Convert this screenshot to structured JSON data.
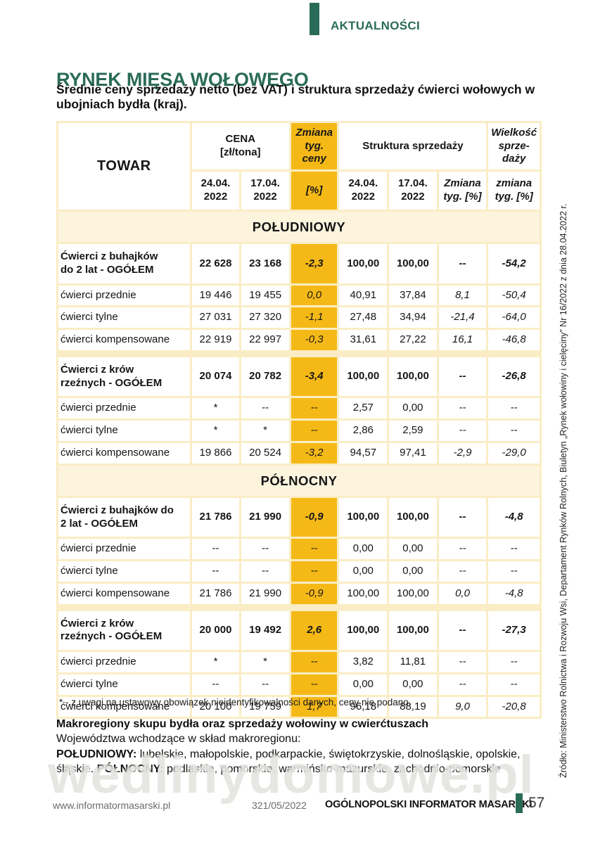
{
  "header": {
    "section_label": "AKTUALNOŚCI"
  },
  "article": {
    "title": "RYNEK MIĘSA WOŁOWEGO",
    "subtitle": "Średnie ceny sprzedaży netto (bez VAT) i struktura sprzedaży ćwierci wołowych w ubojniach bydła (kraj)."
  },
  "table": {
    "header_row1": [
      {
        "label": "TOWAR",
        "rowspan": 2,
        "colspan": 1,
        "class": "th-towar"
      },
      {
        "label": "CENA\n[zł/tona]",
        "rowspan": 1,
        "colspan": 2,
        "class": ""
      },
      {
        "label": "Zmiana\ntyg.\nceny",
        "rowspan": 1,
        "colspan": 1,
        "class": "yellow ital"
      },
      {
        "label": "Struktura sprzedaży",
        "rowspan": 1,
        "colspan": 3,
        "class": ""
      },
      {
        "label": "Wielkość\nsprze-\ndaży",
        "rowspan": 1,
        "colspan": 1,
        "class": "ital"
      }
    ],
    "header_row2": [
      {
        "label": "24.04.\n2022",
        "class": ""
      },
      {
        "label": "17.04.\n2022",
        "class": ""
      },
      {
        "label": "[%]",
        "class": "yellow ital"
      },
      {
        "label": "24.04.\n2022",
        "class": ""
      },
      {
        "label": "17.04.\n2022",
        "class": ""
      },
      {
        "label": "Zmiana\ntyg. [%]",
        "class": "ital"
      },
      {
        "label": "zmiana\ntyg. [%]",
        "class": "ital"
      }
    ],
    "sections": [
      {
        "name": "POŁUDNIOWY",
        "rows": [
          {
            "type": "group",
            "cells": [
              "Ćwierci z buhajków\ndo 2 lat - OGÓŁEM",
              "22 628",
              "23 168",
              "-2,3",
              "100,00",
              "100,00",
              "--",
              "-54,2"
            ]
          },
          {
            "type": "normal",
            "cells": [
              "ćwierci przednie",
              "19 446",
              "19 455",
              "0,0",
              "40,91",
              "37,84",
              "8,1",
              "-50,4"
            ]
          },
          {
            "type": "normal",
            "cells": [
              "ćwierci tylne",
              "27 031",
              "27 320",
              "-1,1",
              "27,48",
              "34,94",
              "-21,4",
              "-64,0"
            ]
          },
          {
            "type": "normal",
            "cells": [
              "ćwierci kompensowane",
              "22 919",
              "22 997",
              "-0,3",
              "31,61",
              "27,22",
              "16,1",
              "-46,8"
            ]
          },
          {
            "type": "group",
            "cells": [
              "Ćwierci z krów\nrzeźnych - OGÓŁEM",
              "20 074",
              "20 782",
              "-3,4",
              "100,00",
              "100,00",
              "--",
              "-26,8"
            ]
          },
          {
            "type": "normal",
            "cells": [
              "ćwierci przednie",
              "*",
              "--",
              "--",
              "2,57",
              "0,00",
              "--",
              "--"
            ]
          },
          {
            "type": "normal",
            "cells": [
              "ćwierci tylne",
              "*",
              "*",
              "--",
              "2,86",
              "2,59",
              "--",
              "--"
            ]
          },
          {
            "type": "normal",
            "cells": [
              "ćwierci kompensowane",
              "19 866",
              "20 524",
              "-3,2",
              "94,57",
              "97,41",
              "-2,9",
              "-29,0"
            ]
          }
        ]
      },
      {
        "name": "PÓŁNOCNY",
        "rows": [
          {
            "type": "group",
            "cells": [
              "Ćwierci z buhajków do\n2 lat - OGÓŁEM",
              "21 786",
              "21 990",
              "-0,9",
              "100,00",
              "100,00",
              "--",
              "-4,8"
            ]
          },
          {
            "type": "normal",
            "cells": [
              "ćwierci przednie",
              "--",
              "--",
              "--",
              "0,00",
              "0,00",
              "--",
              "--"
            ]
          },
          {
            "type": "normal",
            "cells": [
              "ćwierci tylne",
              "--",
              "--",
              "--",
              "0,00",
              "0,00",
              "--",
              "--"
            ]
          },
          {
            "type": "normal",
            "cells": [
              "ćwierci kompensowane",
              "21 786",
              "21 990",
              "-0,9",
              "100,00",
              "100,00",
              "0,0",
              "-4,8"
            ]
          },
          {
            "type": "group",
            "cells": [
              "Ćwierci z krów\nrzeźnych - OGÓŁEM",
              "20 000",
              "19 492",
              "2,6",
              "100,00",
              "100,00",
              "--",
              "-27,3"
            ]
          },
          {
            "type": "normal",
            "cells": [
              "ćwierci przednie",
              "*",
              "*",
              "--",
              "3,82",
              "11,81",
              "--",
              "--"
            ]
          },
          {
            "type": "normal",
            "cells": [
              "ćwierci tylne",
              "--",
              "--",
              "--",
              "0,00",
              "0,00",
              "--",
              "--"
            ]
          },
          {
            "type": "normal",
            "cells": [
              "ćwierci kompensowane",
              "20 100",
              "19 759",
              "1,7",
              "96,18",
              "88,19",
              "9,0",
              "-20,8"
            ]
          }
        ]
      }
    ],
    "footnote": "* - z uwagi na ustawowy obowiązek nieidentyfikowalności danych, ceny nie podano."
  },
  "macroregions": {
    "heading": "Makroregiony skupu bydła oraz sprzedaży wołowiny w cwierćtuszach",
    "intro": "Województwa wchodzące w skład makroregionu:",
    "south_label": "POŁUDNIOWY:",
    "south_list": " lubelskie, małopolskie, podkarpackie, świętokrzyskie, dolnośląskie, opolskie, śląskie. ",
    "north_label": "PÓŁNOCNY:",
    "north_list": " podlaskie, pomorskie, warmińsko-mazurskie, zachodnio-pomorskie"
  },
  "source_note": "Źródło: Ministerstwo Rolnictwa i Rozwoju Wsi, Departament Rynków Rolnych, Biuletyn „Rynek wołowiny i cielęciny” Nr 16/2022 z dnia 28.04.2022 r.",
  "watermark": "wedlinydomowe.pl",
  "footer": {
    "website": "www.informatormasarski.pl",
    "issue": "321/05/2022",
    "magazine": "OGÓLNOPOLSKI INFORMATOR MASARSKI",
    "page_number": "57"
  },
  "colors": {
    "accent_teal": "#2A6B58",
    "highlight_gold": "#F5B917",
    "table_grid_cream": "#FAEDC5",
    "section_band_cream": "#FDF4DE"
  }
}
